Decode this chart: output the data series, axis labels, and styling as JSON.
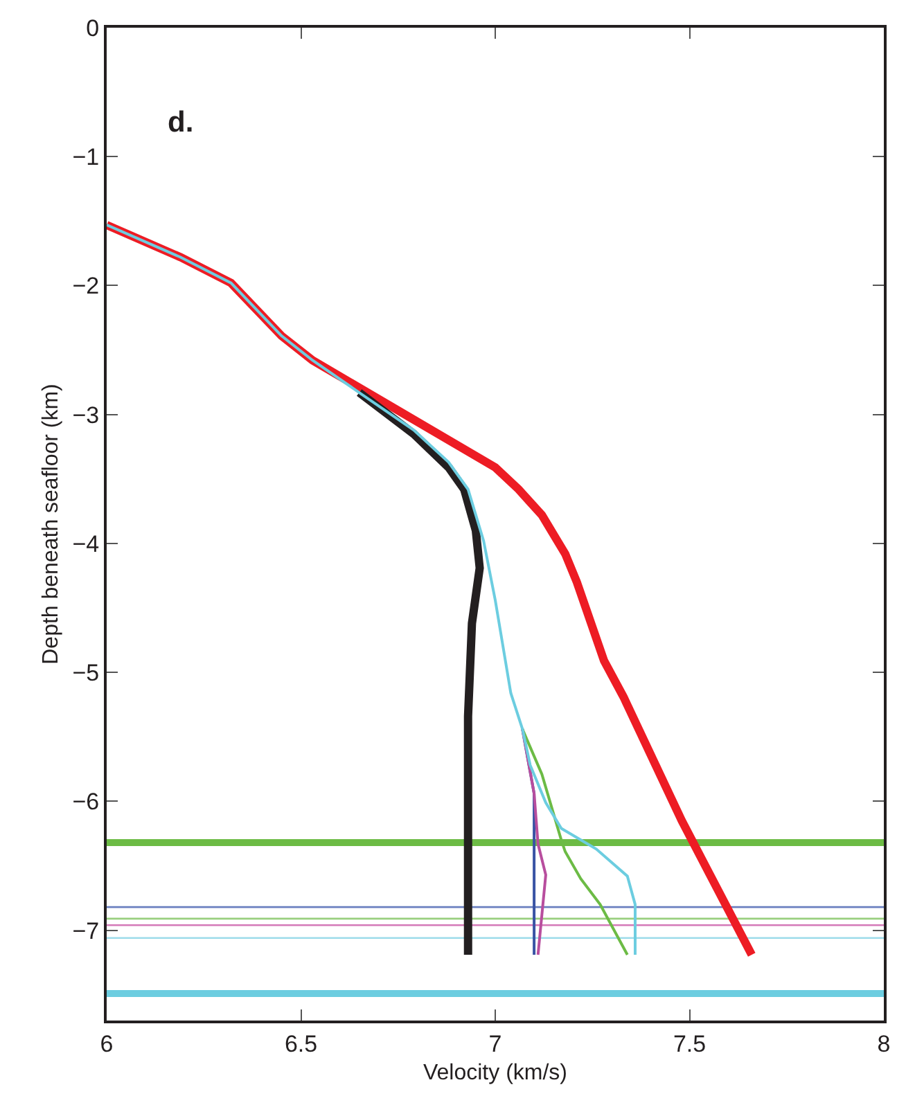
{
  "chart_data": {
    "type": "line",
    "xlabel": "Velocity (km/s)",
    "ylabel": "Depth beneath seafloor (km)",
    "annotations": [
      "d."
    ],
    "xlim": [
      6,
      8
    ],
    "xticks": [
      6,
      6.5,
      7,
      7.5,
      8
    ],
    "ylim": [
      -7.7,
      0
    ],
    "yticks": [
      0,
      {
        "value": -1,
        "label": "−1"
      },
      {
        "value": -2,
        "label": "−2"
      },
      {
        "value": -3,
        "label": "−3"
      },
      {
        "value": -4,
        "label": "−4"
      },
      {
        "value": -5,
        "label": "−5"
      },
      {
        "value": -6,
        "label": "−6"
      },
      {
        "value": -7,
        "label": "−7"
      }
    ],
    "marker": "none",
    "line_style": "solid",
    "series": [
      {
        "color": "#231f20",
        "x": [
          6.65,
          6.79,
          6.88,
          6.92,
          6.95,
          6.96,
          6.94,
          6.93,
          6.93
        ],
        "values": [
          -2.83,
          -3.15,
          -3.41,
          -3.58,
          -3.9,
          -4.19,
          -4.62,
          -5.34,
          -7.19
        ]
      },
      {
        "color": "#ed1c24",
        "x": [
          6.0,
          6.19,
          6.32,
          6.45,
          6.53,
          7.0,
          7.06,
          7.12,
          7.18,
          7.21,
          7.28,
          7.33,
          7.48,
          7.66
        ],
        "values": [
          -1.53,
          -1.78,
          -1.98,
          -2.39,
          -2.58,
          -3.41,
          -3.58,
          -3.78,
          -4.08,
          -4.3,
          -4.91,
          -5.19,
          -6.15,
          -7.19
        ]
      },
      {
        "color": "#3953a4",
        "x": [
          7.07,
          7.1,
          7.1
        ],
        "values": [
          -5.44,
          -5.94,
          -7.19
        ]
      },
      {
        "color": "#b84e9e",
        "x": [
          7.07,
          7.1,
          7.11,
          7.13,
          7.11
        ],
        "values": [
          -5.44,
          -5.94,
          -6.33,
          -6.57,
          -7.19
        ]
      },
      {
        "color": "#6cbb45",
        "x": [
          7.07,
          7.12,
          7.17,
          7.18,
          7.22,
          7.27,
          7.34
        ],
        "values": [
          -5.44,
          -5.79,
          -6.3,
          -6.39,
          -6.6,
          -6.8,
          -7.19
        ]
      },
      {
        "color": "#6ccde0",
        "x": [
          6.0,
          6.19,
          6.32,
          6.45,
          6.53,
          6.65,
          6.79,
          6.88,
          6.93,
          6.97,
          7.0,
          7.02,
          7.04,
          7.07,
          7.09,
          7.13,
          7.17,
          7.26,
          7.34,
          7.36,
          7.36
        ],
        "values": [
          -1.53,
          -1.78,
          -1.98,
          -2.39,
          -2.58,
          -2.83,
          -3.12,
          -3.37,
          -3.58,
          -3.98,
          -4.44,
          -4.8,
          -5.16,
          -5.44,
          -5.72,
          -6.01,
          -6.21,
          -6.37,
          -6.58,
          -6.8,
          -7.19
        ]
      }
    ],
    "ref_lines": [
      {
        "axis": "y",
        "value": -6.32,
        "color": "#6cbb45"
      },
      {
        "axis": "y",
        "value": -6.82,
        "color": "#6a7fbf"
      },
      {
        "axis": "y",
        "value": -6.91,
        "color": "#99cf7e"
      },
      {
        "axis": "y",
        "value": -6.96,
        "color": "#d47ab8"
      },
      {
        "axis": "y",
        "value": -7.06,
        "color": "#9ddcea"
      },
      {
        "axis": "y",
        "value": -7.49,
        "color": "#6ccde0"
      }
    ]
  }
}
